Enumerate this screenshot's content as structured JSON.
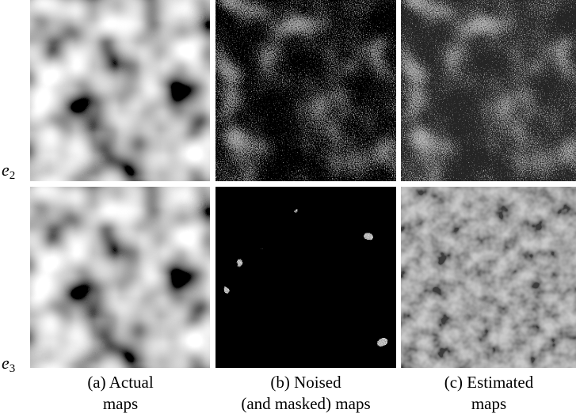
{
  "row_labels": [
    {
      "symbol": "e",
      "subscript": "2"
    },
    {
      "symbol": "e",
      "subscript": "3"
    }
  ],
  "captions": [
    [
      "(a) Actual",
      "maps"
    ],
    [
      "(b) Noised",
      "(and masked) maps"
    ],
    [
      "(c) Estimated",
      "maps"
    ]
  ]
}
